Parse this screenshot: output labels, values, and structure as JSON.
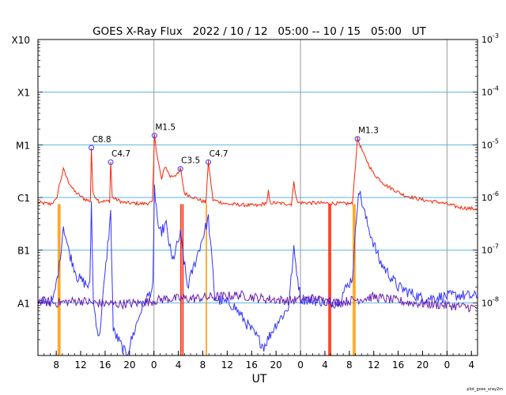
{
  "chart_data": {
    "type": "line",
    "title": "GOES X-Ray Flux   2022 / 10 / 12   05:00 -- 10 / 15   05:00   UT",
    "xlabel": "UT",
    "ylabel": "",
    "y_scale": "log",
    "ylim": [
      1e-09,
      0.001
    ],
    "xlim": [
      "2022-10-12 05:00",
      "2022-10-15 05:00"
    ],
    "grid": true,
    "legend": "none",
    "class_labels": [
      {
        "label": "A1",
        "value": 1e-08
      },
      {
        "label": "B1",
        "value": 1e-07
      },
      {
        "label": "C1",
        "value": 1e-06
      },
      {
        "label": "M1",
        "value": 1e-05
      },
      {
        "label": "X1",
        "value": 0.0001
      },
      {
        "label": "X10",
        "value": 0.001
      }
    ],
    "right_ticks": [
      {
        "label": "10",
        "exp": "-3",
        "value": 0.001
      },
      {
        "label": "10",
        "exp": "-4",
        "value": 0.0001
      },
      {
        "label": "10",
        "exp": "-5",
        "value": 1e-05
      },
      {
        "label": "10",
        "exp": "-6",
        "value": 1e-06
      },
      {
        "label": "10",
        "exp": "-7",
        "value": 1e-07
      },
      {
        "label": "10",
        "exp": "-8",
        "value": 1e-08
      }
    ],
    "x_ticks": [
      {
        "t": "2022-10-12 08:00",
        "label": "8"
      },
      {
        "t": "2022-10-12 12:00",
        "label": "12"
      },
      {
        "t": "2022-10-12 16:00",
        "label": "16"
      },
      {
        "t": "2022-10-12 20:00",
        "label": "20"
      },
      {
        "t": "2022-10-13 00:00",
        "label": "0"
      },
      {
        "t": "2022-10-13 04:00",
        "label": "4"
      },
      {
        "t": "2022-10-13 08:00",
        "label": "8"
      },
      {
        "t": "2022-10-13 12:00",
        "label": "12"
      },
      {
        "t": "2022-10-13 16:00",
        "label": "16"
      },
      {
        "t": "2022-10-13 20:00",
        "label": "20"
      },
      {
        "t": "2022-10-14 00:00",
        "label": "0"
      },
      {
        "t": "2022-10-14 04:00",
        "label": "4"
      },
      {
        "t": "2022-10-14 08:00",
        "label": "8"
      },
      {
        "t": "2022-10-14 12:00",
        "label": "12"
      },
      {
        "t": "2022-10-14 16:00",
        "label": "16"
      },
      {
        "t": "2022-10-14 20:00",
        "label": "20"
      },
      {
        "t": "2022-10-15 00:00",
        "label": "0"
      },
      {
        "t": "2022-10-15 04:00",
        "label": "4"
      }
    ],
    "day_boundaries": [
      "2022-10-13 00:00",
      "2022-10-14 00:00",
      "2022-10-15 00:00"
    ],
    "flares": [
      {
        "label": "C8.8",
        "t": "2022-10-12 13:45",
        "flux": 8.8e-06
      },
      {
        "label": "C4.7",
        "t": "2022-10-12 16:55",
        "flux": 4.7e-06
      },
      {
        "label": "M1.5",
        "t": "2022-10-13 00:05",
        "flux": 1.5e-05
      },
      {
        "label": "C3.5",
        "t": "2022-10-13 04:20",
        "flux": 3.5e-06
      },
      {
        "label": "C4.7",
        "t": "2022-10-13 08:55",
        "flux": 4.7e-06
      },
      {
        "label": "M1.3",
        "t": "2022-10-14 09:20",
        "flux": 1.3e-05
      }
    ],
    "series": [
      {
        "color": "#ff2200",
        "points": [
          [
            "2022-10-12 05:00",
            8e-07
          ],
          [
            "2022-10-12 07:00",
            7.5e-07
          ],
          [
            "2022-10-12 08:00",
            9e-07
          ],
          [
            "2022-10-12 08:30",
            1.7e-06
          ],
          [
            "2022-10-12 09:10",
            3.4e-06
          ],
          [
            "2022-10-12 10:00",
            2e-06
          ],
          [
            "2022-10-12 11:00",
            1.3e-06
          ],
          [
            "2022-10-12 12:30",
            9.5e-07
          ],
          [
            "2022-10-12 13:35",
            8.5e-07
          ],
          [
            "2022-10-12 13:45",
            8.8e-06
          ],
          [
            "2022-10-12 14:00",
            1.2e-06
          ],
          [
            "2022-10-12 15:00",
            8.5e-07
          ],
          [
            "2022-10-12 16:45",
            8.5e-07
          ],
          [
            "2022-10-12 16:55",
            4.7e-06
          ],
          [
            "2022-10-12 17:10",
            1e-06
          ],
          [
            "2022-10-12 19:00",
            8e-07
          ],
          [
            "2022-10-12 22:00",
            7.6e-07
          ],
          [
            "2022-10-12 23:45",
            8e-07
          ],
          [
            "2022-10-13 00:05",
            1.5e-05
          ],
          [
            "2022-10-13 00:40",
            5e-06
          ],
          [
            "2022-10-13 01:15",
            2.2e-06
          ],
          [
            "2022-10-13 01:50",
            4e-06
          ],
          [
            "2022-10-13 02:40",
            2.5e-06
          ],
          [
            "2022-10-13 04:00",
            2.8e-06
          ],
          [
            "2022-10-13 04:20",
            3.5e-06
          ],
          [
            "2022-10-13 05:00",
            1.2e-06
          ],
          [
            "2022-10-13 08:30",
            8e-07
          ],
          [
            "2022-10-13 08:55",
            4.7e-06
          ],
          [
            "2022-10-13 09:40",
            9e-07
          ],
          [
            "2022-10-13 12:00",
            7.5e-07
          ],
          [
            "2022-10-13 17:00",
            7e-07
          ],
          [
            "2022-10-13 18:30",
            8e-07
          ],
          [
            "2022-10-13 18:45",
            1.3e-06
          ],
          [
            "2022-10-13 19:00",
            8e-07
          ],
          [
            "2022-10-13 22:30",
            7.5e-07
          ],
          [
            "2022-10-13 22:55",
            1.9e-06
          ],
          [
            "2022-10-13 23:30",
            8e-07
          ],
          [
            "2022-10-14 08:30",
            7.6e-07
          ],
          [
            "2022-10-14 09:20",
            1.3e-05
          ],
          [
            "2022-10-14 10:30",
            6e-06
          ],
          [
            "2022-10-14 12:00",
            2.8e-06
          ],
          [
            "2022-10-14 14:00",
            1.7e-06
          ],
          [
            "2022-10-14 17:00",
            1.1e-06
          ],
          [
            "2022-10-14 20:00",
            9e-07
          ],
          [
            "2022-10-14 23:00",
            8e-07
          ],
          [
            "2022-10-15 02:00",
            6.5e-07
          ],
          [
            "2022-10-15 05:00",
            6e-07
          ]
        ]
      },
      {
        "color": "#3333ff",
        "points": [
          [
            "2022-10-12 05:00",
            1e-08
          ],
          [
            "2022-10-12 07:30",
            1.1e-08
          ],
          [
            "2022-10-12 08:30",
            5e-08
          ],
          [
            "2022-10-12 09:10",
            3e-07
          ],
          [
            "2022-10-12 10:00",
            1e-07
          ],
          [
            "2022-10-12 11:30",
            3e-08
          ],
          [
            "2022-10-12 13:30",
            2e-08
          ],
          [
            "2022-10-12 13:45",
            8e-07
          ],
          [
            "2022-10-12 14:05",
            1e-08
          ],
          [
            "2022-10-12 15:00",
            2e-09
          ],
          [
            "2022-10-12 16:55",
            5e-07
          ],
          [
            "2022-10-12 17:20",
            3e-09
          ],
          [
            "2022-10-12 19:30",
            1e-09
          ],
          [
            "2022-10-12 22:00",
            8e-09
          ],
          [
            "2022-10-12 23:50",
            2e-08
          ],
          [
            "2022-10-13 00:05",
            1.5e-06
          ],
          [
            "2022-10-13 00:50",
            2e-07
          ],
          [
            "2022-10-13 02:00",
            3e-07
          ],
          [
            "2022-10-13 03:00",
            6e-08
          ],
          [
            "2022-10-13 04:20",
            2e-07
          ],
          [
            "2022-10-13 05:30",
            2e-08
          ],
          [
            "2022-10-13 08:55",
            4e-07
          ],
          [
            "2022-10-13 10:00",
            1.2e-08
          ],
          [
            "2022-10-13 13:00",
            9e-09
          ],
          [
            "2022-10-13 16:00",
            3e-09
          ],
          [
            "2022-10-13 18:00",
            1.5e-09
          ],
          [
            "2022-10-13 20:00",
            4e-09
          ],
          [
            "2022-10-13 22:00",
            8e-09
          ],
          [
            "2022-10-13 22:55",
            1e-07
          ],
          [
            "2022-10-14 00:00",
            1.2e-08
          ],
          [
            "2022-10-14 06:00",
            1e-08
          ],
          [
            "2022-10-14 08:30",
            3e-08
          ],
          [
            "2022-10-14 09:30",
            1.5e-06
          ],
          [
            "2022-10-14 11:00",
            3e-07
          ],
          [
            "2022-10-14 13:00",
            6e-08
          ],
          [
            "2022-10-14 16:00",
            2e-08
          ],
          [
            "2022-10-14 20:00",
            1.2e-08
          ],
          [
            "2022-10-15 02:00",
            1.4e-08
          ],
          [
            "2022-10-15 05:00",
            1.3e-08
          ]
        ]
      },
      {
        "color": "#6a1fb0",
        "points": [
          [
            "2022-10-12 05:00",
            1.1e-08
          ],
          [
            "2022-10-12 08:00",
            1e-08
          ],
          [
            "2022-10-12 12:00",
            1.1e-08
          ],
          [
            "2022-10-12 14:00",
            1e-08
          ],
          [
            "2022-10-12 18:00",
            9.5e-09
          ],
          [
            "2022-10-12 22:00",
            1e-08
          ],
          [
            "2022-10-13 02:00",
            1.2e-08
          ],
          [
            "2022-10-13 06:00",
            1.2e-08
          ],
          [
            "2022-10-13 10:00",
            1.3e-08
          ],
          [
            "2022-10-13 14:00",
            1.4e-08
          ],
          [
            "2022-10-13 18:00",
            1.2e-08
          ],
          [
            "2022-10-13 22:00",
            1.1e-08
          ],
          [
            "2022-10-14 02:00",
            1.2e-08
          ],
          [
            "2022-10-14 06:00",
            1e-08
          ],
          [
            "2022-10-14 12:00",
            1.3e-08
          ],
          [
            "2022-10-14 18:00",
            1e-08
          ],
          [
            "2022-10-15 00:00",
            9e-09
          ],
          [
            "2022-10-15 05:00",
            8e-09
          ]
        ]
      }
    ],
    "dropouts": [
      {
        "t": "2022-10-12 08:20",
        "color": "#ff9900"
      },
      {
        "t": "2022-10-12 08:35",
        "color": "#ff9900"
      },
      {
        "t": "2022-10-13 04:25",
        "color": "#ff2200"
      },
      {
        "t": "2022-10-13 04:45",
        "color": "#ff2200"
      },
      {
        "t": "2022-10-13 08:35",
        "color": "#ff9900"
      },
      {
        "t": "2022-10-14 04:40",
        "color": "#ff2200"
      },
      {
        "t": "2022-10-14 04:55",
        "color": "#ff2200"
      },
      {
        "t": "2022-10-14 08:40",
        "color": "#ff9900"
      },
      {
        "t": "2022-10-14 08:55",
        "color": "#ff9900"
      }
    ],
    "footer": "plot_goes_xray2m"
  }
}
